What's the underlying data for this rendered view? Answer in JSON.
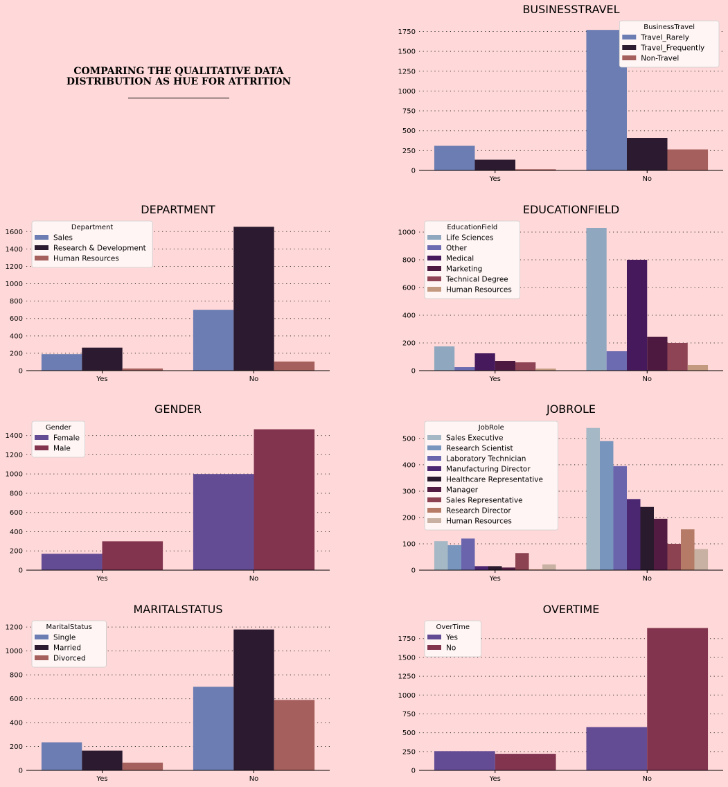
{
  "intro": {
    "line1": "COMPARING THE QUALITATIVE DATA",
    "line2": "DISTRIBUTION AS HUE FOR ATTRITION"
  },
  "chart_data": [
    {
      "type": "bar",
      "title": "BUSINESSTRAVEL",
      "categories": [
        "Yes",
        "No"
      ],
      "legend_title": "BusinessTravel",
      "legend_position": "top-right",
      "yticks": [
        0,
        250,
        500,
        750,
        1000,
        1250,
        1500,
        1750
      ],
      "ylim": [
        0,
        1850
      ],
      "grid": true,
      "series": [
        {
          "name": "Travel_Rarely",
          "color": "#6b7db2",
          "values": [
            310,
            1770
          ]
        },
        {
          "name": "Travel_Frequently",
          "color": "#2b1a30",
          "values": [
            135,
            410
          ]
        },
        {
          "name": "Non-Travel",
          "color": "#a55f5c",
          "values": [
            15,
            265
          ]
        }
      ]
    },
    {
      "type": "bar",
      "title": "DEPARTMENT",
      "categories": [
        "Yes",
        "No"
      ],
      "legend_title": "Department",
      "legend_position": "top-left",
      "yticks": [
        0,
        200,
        400,
        600,
        800,
        1000,
        1200,
        1400,
        1600
      ],
      "ylim": [
        0,
        1690
      ],
      "grid": true,
      "series": [
        {
          "name": "Sales",
          "color": "#6b7db2",
          "values": [
            190,
            700
          ]
        },
        {
          "name": "Research & Development",
          "color": "#2b1a30",
          "values": [
            265,
            1655
          ]
        },
        {
          "name": "Human Resources",
          "color": "#a55f5c",
          "values": [
            25,
            105
          ]
        }
      ]
    },
    {
      "type": "bar",
      "title": "EDUCATIONFIELD",
      "categories": [
        "Yes",
        "No"
      ],
      "legend_title": "EducationField",
      "legend_position": "top-left",
      "yticks": [
        0,
        200,
        400,
        600,
        800,
        1000
      ],
      "ylim": [
        0,
        1060
      ],
      "grid": true,
      "series": [
        {
          "name": "Life Sciences",
          "color": "#8fa8bf",
          "values": [
            175,
            1030
          ]
        },
        {
          "name": "Other",
          "color": "#6c6ab0",
          "values": [
            25,
            140
          ]
        },
        {
          "name": "Medical",
          "color": "#45195c",
          "values": [
            125,
            800
          ]
        },
        {
          "name": "Marketing",
          "color": "#4e1940",
          "values": [
            70,
            245
          ]
        },
        {
          "name": "Technical Degree",
          "color": "#8e4454",
          "values": [
            60,
            200
          ]
        },
        {
          "name": "Human Resources",
          "color": "#c39980",
          "values": [
            15,
            40
          ]
        }
      ]
    },
    {
      "type": "bar",
      "title": "GENDER",
      "categories": [
        "Yes",
        "No"
      ],
      "legend_title": "Gender",
      "legend_position": "top-left",
      "yticks": [
        0,
        200,
        400,
        600,
        800,
        1000,
        1200,
        1400
      ],
      "ylim": [
        0,
        1520
      ],
      "grid": true,
      "series": [
        {
          "name": "Female",
          "color": "#644c95",
          "values": [
            170,
            1000
          ]
        },
        {
          "name": "Male",
          "color": "#82344f",
          "values": [
            300,
            1465
          ]
        }
      ]
    },
    {
      "type": "bar",
      "title": "JOBROLE",
      "categories": [
        "Yes",
        "No"
      ],
      "legend_title": "JobRole",
      "legend_position": "top-left",
      "yticks": [
        0,
        100,
        200,
        300,
        400,
        500
      ],
      "ylim": [
        0,
        555
      ],
      "grid": true,
      "series": [
        {
          "name": "Sales Executive",
          "color": "#a5b8c5",
          "values": [
            110,
            540
          ]
        },
        {
          "name": "Research Scientist",
          "color": "#7895bd",
          "values": [
            95,
            490
          ]
        },
        {
          "name": "Laboratory Technician",
          "color": "#6a64ad",
          "values": [
            120,
            395
          ]
        },
        {
          "name": "Manufacturing Director",
          "color": "#4b2671",
          "values": [
            15,
            270
          ]
        },
        {
          "name": "Healthcare Representative",
          "color": "#2a1a2e",
          "values": [
            15,
            240
          ]
        },
        {
          "name": "Manager",
          "color": "#521b42",
          "values": [
            10,
            195
          ]
        },
        {
          "name": "Sales Representative",
          "color": "#8c4250",
          "values": [
            65,
            100
          ]
        },
        {
          "name": "Research Director",
          "color": "#b57b66",
          "values": [
            3,
            155
          ]
        },
        {
          "name": "Human Resources",
          "color": "#c8b1a2",
          "values": [
            22,
            80
          ]
        }
      ]
    },
    {
      "type": "bar",
      "title": "MARITALSTATUS",
      "categories": [
        "Yes",
        "No"
      ],
      "legend_title": "MaritalStatus",
      "legend_position": "top-left",
      "yticks": [
        0,
        200,
        400,
        600,
        800,
        1000,
        1200
      ],
      "ylim": [
        0,
        1230
      ],
      "grid": true,
      "series": [
        {
          "name": "Single",
          "color": "#6b7db2",
          "values": [
            235,
            700
          ]
        },
        {
          "name": "Married",
          "color": "#2b1a30",
          "values": [
            165,
            1180
          ]
        },
        {
          "name": "Divorced",
          "color": "#a55f5c",
          "values": [
            65,
            590
          ]
        }
      ]
    },
    {
      "type": "bar",
      "title": "OVERTIME",
      "categories": [
        "Yes",
        "No"
      ],
      "legend_title": "OverTime",
      "legend_position": "top-left",
      "yticks": [
        0,
        250,
        500,
        750,
        1000,
        1250,
        1500,
        1750
      ],
      "ylim": [
        0,
        1950
      ],
      "grid": true,
      "series": [
        {
          "name": "Yes",
          "color": "#644c95",
          "values": [
            255,
            575
          ]
        },
        {
          "name": "No",
          "color": "#82344f",
          "values": [
            220,
            1890
          ]
        }
      ]
    }
  ]
}
